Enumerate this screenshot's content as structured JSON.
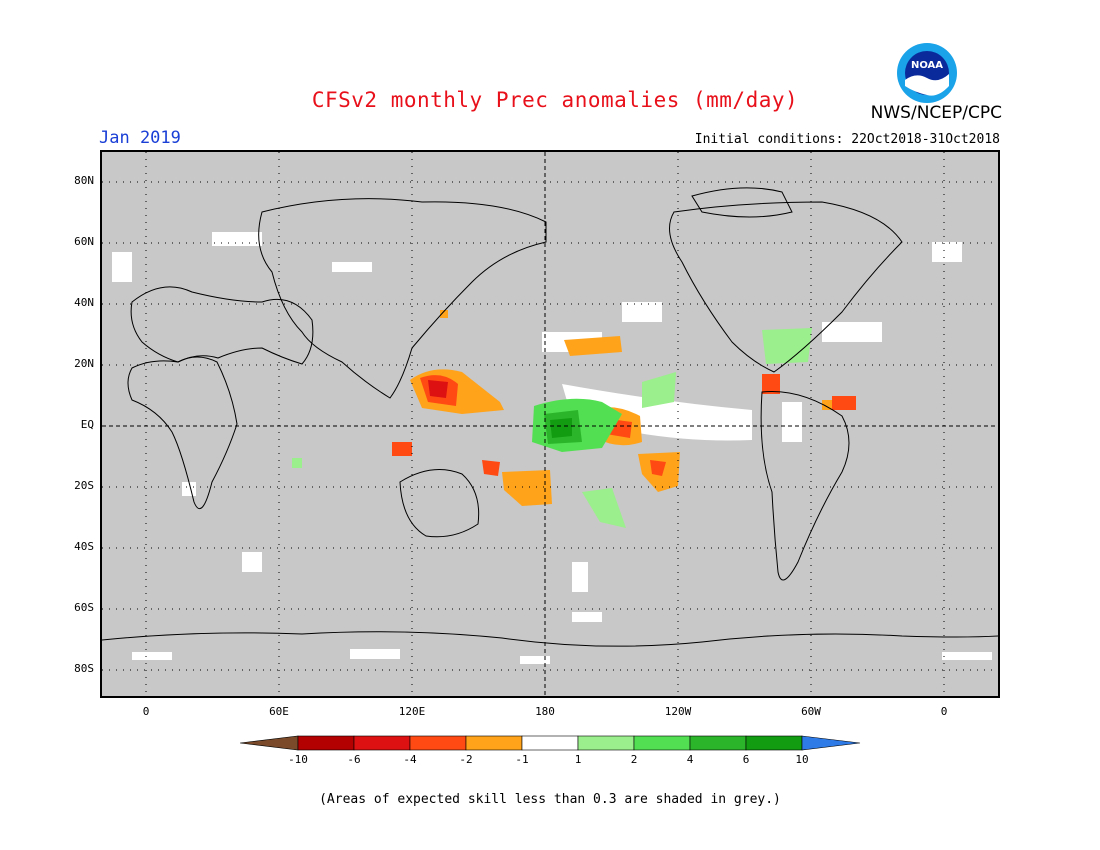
{
  "header": {
    "title": "CFSv2 monthly Prec anomalies (mm/day)",
    "month": "Jan 2019",
    "initial_conditions": "Initial conditions: 22Oct2018-31Oct2018",
    "agency": "NWS/NCEP/CPC",
    "logo_text": "NOAA"
  },
  "map": {
    "lat_ticks": [
      "80N",
      "60N",
      "40N",
      "20N",
      "EQ",
      "20S",
      "40S",
      "60S",
      "80S"
    ],
    "lon_ticks": [
      "0",
      "60E",
      "120E",
      "180",
      "120W",
      "60W",
      "0"
    ],
    "mask_color": "#c8c8c8",
    "colors": {
      "dry_-10": "#7a4a2a",
      "dry_-6": "#b30000",
      "dry_-4": "#dd1111",
      "dry_-2": "#ff4a14",
      "dry_-1": "#ffa31a",
      "neutral": "#ffffff",
      "wet_1": "#9bef8c",
      "wet_2": "#52e052",
      "wet_4": "#2bb52b",
      "wet_6": "#119c11",
      "wet_10": "#2e7ae6"
    }
  },
  "colorbar": {
    "labels": [
      "-10",
      "-6",
      "-4",
      "-2",
      "-1",
      "1",
      "2",
      "4",
      "6",
      "10"
    ]
  },
  "footnote": "(Areas of expected skill less than 0.3 are shaded in grey.)"
}
